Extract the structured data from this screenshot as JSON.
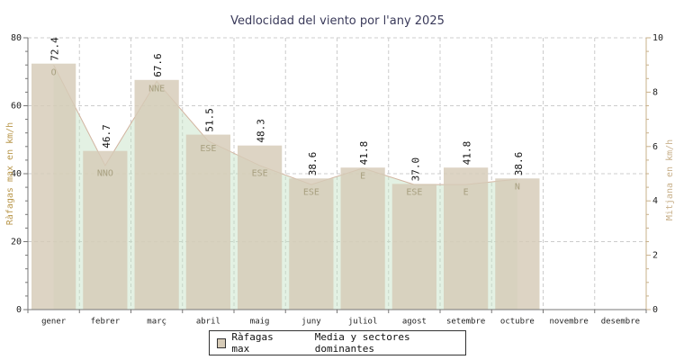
{
  "chart_data": {
    "type": "bar",
    "title": "Vedlocidad del viento por l'any 2025",
    "categories": [
      "gener",
      "febrer",
      "març",
      "abril",
      "maig",
      "juny",
      "juliol",
      "agost",
      "setembre",
      "octubre",
      "novembre",
      "desembre"
    ],
    "series": [
      {
        "name": "Ràfagas max",
        "axis": "left",
        "values": [
          72.4,
          46.7,
          67.6,
          51.5,
          48.3,
          38.6,
          41.8,
          37.0,
          41.8,
          38.6,
          null,
          null
        ],
        "labels": [
          "72.4",
          "46.7",
          "67.6",
          "51.5",
          "48.3",
          "38.6",
          "41.8",
          "37.0",
          "41.8",
          "38.6",
          "",
          ""
        ]
      },
      {
        "name": "Media y sectores dominantes",
        "axis": "right",
        "values": [
          9.0,
          5.3,
          8.4,
          6.2,
          5.3,
          4.6,
          5.2,
          4.6,
          4.6,
          4.8,
          null,
          null
        ],
        "sectors": [
          "O",
          "NNO",
          "NNE",
          "ESE",
          "ESE",
          "ESE",
          "E",
          "ESE",
          "E",
          "N",
          "",
          ""
        ]
      }
    ],
    "ylabel": "Ràfagas max en km/h",
    "y2label": "Mitjana en km/h",
    "ylim": [
      0,
      80
    ],
    "y2lim": [
      0,
      10
    ],
    "yticks": [
      "0",
      "20",
      "40",
      "60",
      "80"
    ],
    "y2ticks": [
      "0",
      "2",
      "4",
      "6",
      "8",
      "10"
    ],
    "grid": true,
    "legend_position": "bottom-center"
  },
  "colors": {
    "bar_fill": "#d6cbb7",
    "area_fill": "#c2e0c0",
    "area_line": "#d2b4a0",
    "sector_text": "#a8a080",
    "axis_label": "#b8964a",
    "axis_label_right": "#c8b08a",
    "grid": "#cccccc"
  }
}
